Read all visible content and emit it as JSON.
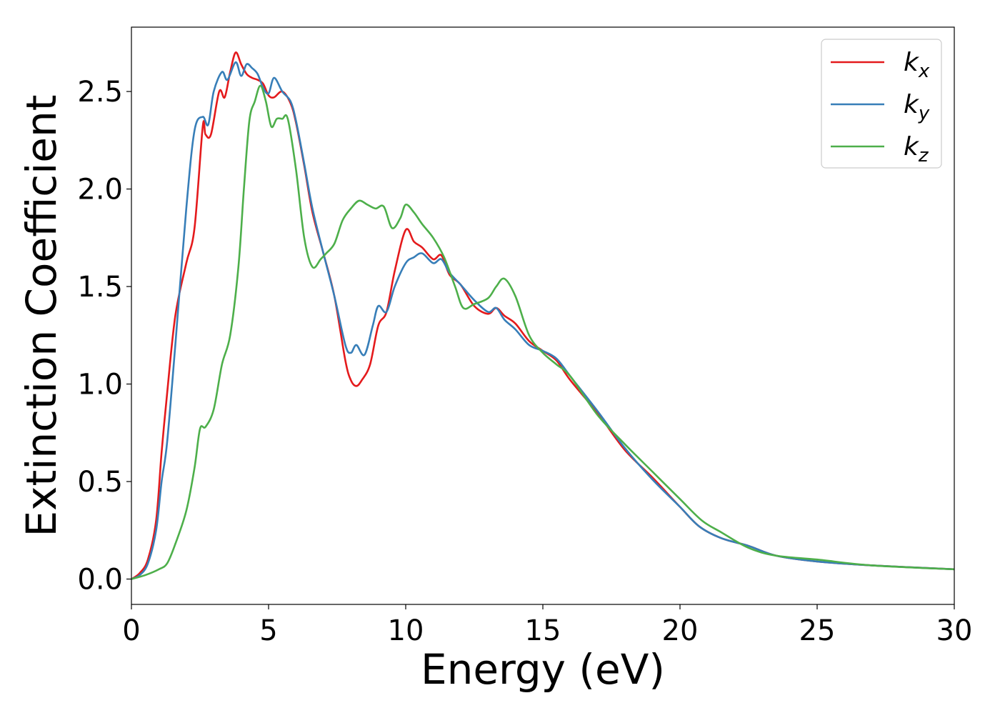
{
  "chart_data": {
    "type": "line",
    "title": "",
    "xlabel": "Energy (eV)",
    "ylabel": "Extinction Coefficient",
    "xlim": [
      0,
      30
    ],
    "ylim": [
      -0.13,
      2.83
    ],
    "xticks": [
      0,
      5,
      10,
      15,
      20,
      25,
      30
    ],
    "xtick_labels": [
      "0",
      "5",
      "10",
      "15",
      "20",
      "25",
      "30"
    ],
    "yticks": [
      0.0,
      0.5,
      1.0,
      1.5,
      2.0,
      2.5
    ],
    "ytick_labels": [
      "0.0",
      "0.5",
      "1.0",
      "1.5",
      "2.0",
      "2.5"
    ],
    "grid": false,
    "legend_position": "top-right",
    "series": [
      {
        "name": "k_x",
        "legend_base": "k",
        "legend_sub": "x",
        "color": "#e41a1c",
        "x": [
          0,
          0.3,
          0.6,
          0.9,
          1.1,
          1.3,
          1.6,
          2.0,
          2.3,
          2.6,
          2.7,
          2.9,
          3.2,
          3.4,
          3.6,
          3.8,
          4.0,
          4.2,
          4.4,
          4.6,
          4.8,
          5.0,
          5.2,
          5.5,
          5.8,
          6.0,
          6.3,
          6.6,
          7.0,
          7.4,
          7.8,
          8.0,
          8.2,
          8.4,
          8.7,
          9.0,
          9.3,
          9.6,
          10.0,
          10.3,
          10.6,
          11.0,
          11.3,
          11.6,
          12.0,
          12.5,
          13.0,
          13.3,
          13.6,
          14.0,
          14.5,
          15.0,
          15.5,
          16.0,
          17.0,
          18.0,
          19.0,
          20.0,
          20.7,
          21.5,
          22.5,
          23.5,
          25.0,
          27.0,
          30.0
        ],
        "y": [
          0.0,
          0.03,
          0.1,
          0.3,
          0.65,
          0.95,
          1.35,
          1.62,
          1.8,
          2.32,
          2.28,
          2.28,
          2.5,
          2.47,
          2.6,
          2.7,
          2.64,
          2.59,
          2.57,
          2.56,
          2.54,
          2.48,
          2.47,
          2.5,
          2.44,
          2.34,
          2.12,
          1.88,
          1.67,
          1.45,
          1.12,
          1.02,
          0.99,
          1.02,
          1.1,
          1.3,
          1.37,
          1.58,
          1.79,
          1.73,
          1.7,
          1.64,
          1.66,
          1.56,
          1.51,
          1.4,
          1.36,
          1.39,
          1.35,
          1.31,
          1.22,
          1.17,
          1.12,
          1.02,
          0.85,
          0.66,
          0.52,
          0.37,
          0.27,
          0.21,
          0.17,
          0.12,
          0.09,
          0.07,
          0.05
        ]
      },
      {
        "name": "k_y",
        "legend_base": "k",
        "legend_sub": "y",
        "color": "#377eb8",
        "x": [
          0,
          0.3,
          0.6,
          0.9,
          1.1,
          1.3,
          1.6,
          2.0,
          2.3,
          2.6,
          2.8,
          3.0,
          3.3,
          3.5,
          3.8,
          4.0,
          4.2,
          4.4,
          4.6,
          4.8,
          5.0,
          5.2,
          5.5,
          5.8,
          6.0,
          6.3,
          6.6,
          7.0,
          7.4,
          7.8,
          8.0,
          8.2,
          8.5,
          8.8,
          9.0,
          9.3,
          9.6,
          10.0,
          10.3,
          10.6,
          11.0,
          11.3,
          11.6,
          12.0,
          12.5,
          13.0,
          13.3,
          13.6,
          14.0,
          14.5,
          15.0,
          15.5,
          16.0,
          17.0,
          18.0,
          19.0,
          20.0,
          20.7,
          21.5,
          22.5,
          23.5,
          25.0,
          27.0,
          30.0
        ],
        "y": [
          0.0,
          0.02,
          0.08,
          0.25,
          0.5,
          0.7,
          1.2,
          1.9,
          2.3,
          2.37,
          2.33,
          2.5,
          2.6,
          2.56,
          2.65,
          2.58,
          2.64,
          2.62,
          2.59,
          2.52,
          2.49,
          2.57,
          2.5,
          2.45,
          2.35,
          2.13,
          1.9,
          1.67,
          1.45,
          1.2,
          1.16,
          1.2,
          1.15,
          1.3,
          1.4,
          1.37,
          1.5,
          1.62,
          1.65,
          1.67,
          1.62,
          1.64,
          1.57,
          1.51,
          1.43,
          1.37,
          1.39,
          1.33,
          1.28,
          1.2,
          1.17,
          1.13,
          1.04,
          0.86,
          0.67,
          0.51,
          0.37,
          0.27,
          0.21,
          0.17,
          0.12,
          0.09,
          0.07,
          0.05
        ]
      },
      {
        "name": "k_z",
        "legend_base": "k",
        "legend_sub": "z",
        "color": "#4daf4a",
        "x": [
          0,
          0.5,
          1.0,
          1.3,
          1.6,
          2.0,
          2.3,
          2.5,
          2.7,
          3.0,
          3.3,
          3.6,
          3.9,
          4.1,
          4.3,
          4.5,
          4.7,
          4.9,
          5.1,
          5.3,
          5.5,
          5.7,
          6.0,
          6.3,
          6.6,
          6.9,
          7.1,
          7.4,
          7.7,
          8.0,
          8.3,
          8.6,
          8.9,
          9.2,
          9.5,
          9.8,
          10.0,
          10.3,
          10.6,
          11.0,
          11.4,
          11.8,
          12.1,
          12.5,
          13.0,
          13.3,
          13.6,
          14.0,
          14.5,
          15.0,
          15.5,
          16.0,
          17.0,
          18.0,
          19.0,
          20.0,
          20.8,
          21.5,
          22.5,
          23.5,
          25.0,
          27.0,
          30.0
        ],
        "y": [
          0.0,
          0.02,
          0.05,
          0.08,
          0.18,
          0.35,
          0.57,
          0.77,
          0.78,
          0.87,
          1.1,
          1.25,
          1.6,
          2.0,
          2.35,
          2.45,
          2.53,
          2.45,
          2.32,
          2.36,
          2.36,
          2.36,
          2.1,
          1.75,
          1.6,
          1.64,
          1.67,
          1.72,
          1.84,
          1.9,
          1.94,
          1.92,
          1.9,
          1.91,
          1.8,
          1.85,
          1.92,
          1.88,
          1.82,
          1.75,
          1.65,
          1.5,
          1.39,
          1.41,
          1.44,
          1.5,
          1.54,
          1.45,
          1.25,
          1.16,
          1.1,
          1.04,
          0.84,
          0.69,
          0.55,
          0.41,
          0.3,
          0.24,
          0.16,
          0.12,
          0.1,
          0.07,
          0.05
        ]
      }
    ]
  }
}
